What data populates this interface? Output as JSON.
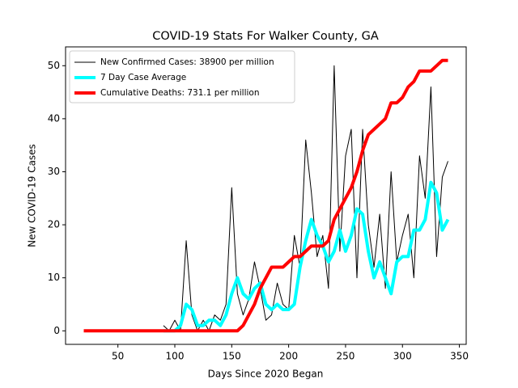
{
  "chart_data": {
    "type": "line",
    "title": "COVID-19 Stats For Walker County, GA",
    "xlabel": "Days Since 2020 Began",
    "ylabel": "New COVID-19 Cases",
    "x": [
      20,
      25,
      30,
      35,
      40,
      45,
      50,
      55,
      60,
      65,
      70,
      75,
      80,
      85,
      90,
      95,
      100,
      105,
      110,
      115,
      120,
      125,
      130,
      135,
      140,
      145,
      150,
      155,
      160,
      165,
      170,
      175,
      180,
      185,
      190,
      195,
      200,
      205,
      210,
      215,
      220,
      225,
      230,
      235,
      240,
      245,
      250,
      255,
      260,
      265,
      270,
      275,
      280,
      285,
      290,
      295,
      300,
      305,
      310,
      315,
      320,
      325,
      330,
      335,
      340
    ],
    "series": [
      {
        "name": "New Confirmed Cases: 38900 per million",
        "color": "#000000",
        "width": 1,
        "values": [
          null,
          null,
          null,
          null,
          null,
          null,
          null,
          null,
          null,
          null,
          null,
          null,
          null,
          null,
          1,
          0,
          2,
          0,
          17,
          3,
          0,
          2,
          0,
          3,
          2,
          5,
          27,
          7,
          3,
          6,
          13,
          8,
          2,
          3,
          9,
          5,
          4,
          18,
          12,
          36,
          26,
          14,
          18,
          8,
          50,
          15,
          33,
          38,
          10,
          38,
          20,
          12,
          22,
          8,
          30,
          13,
          18,
          22,
          10,
          33,
          25,
          46,
          14,
          29,
          32
        ]
      },
      {
        "name": "7 Day Case Average",
        "color": "#00ffff",
        "width": 4,
        "values": [
          null,
          null,
          null,
          null,
          null,
          null,
          null,
          null,
          null,
          null,
          null,
          null,
          null,
          null,
          0,
          0,
          0,
          1,
          5,
          4,
          1,
          1,
          2,
          2,
          1,
          3,
          7,
          10,
          7,
          6,
          8,
          9,
          5,
          4,
          5,
          4,
          4,
          5,
          12,
          17,
          21,
          18,
          16,
          13,
          15,
          19,
          15,
          18,
          23,
          22,
          15,
          10,
          13,
          10,
          7,
          13,
          14,
          14,
          19,
          19,
          21,
          28,
          26,
          19,
          21
        ]
      },
      {
        "name": "Cumulative Deaths: 731.1 per million",
        "color": "#ff0000",
        "width": 4,
        "values": [
          0,
          0,
          0,
          0,
          0,
          0,
          0,
          0,
          0,
          0,
          0,
          0,
          0,
          0,
          0,
          0,
          0,
          0,
          0,
          0,
          0,
          0,
          0,
          0,
          0,
          0,
          0,
          0,
          1,
          3,
          5,
          8,
          10,
          12,
          12,
          12,
          13,
          14,
          14,
          15,
          16,
          16,
          16,
          17,
          21,
          23,
          25,
          27,
          30,
          34,
          37,
          38,
          39,
          40,
          43,
          43,
          44,
          46,
          47,
          49,
          49,
          49,
          50,
          51,
          51
        ]
      }
    ],
    "xlim": [
      4,
      356
    ],
    "xticks": [
      50,
      100,
      150,
      200,
      250,
      300,
      350
    ],
    "ylim": [
      -2.55,
      53.55
    ],
    "yticks": [
      0,
      10,
      20,
      30,
      40,
      50
    ],
    "legend": "upper left"
  }
}
